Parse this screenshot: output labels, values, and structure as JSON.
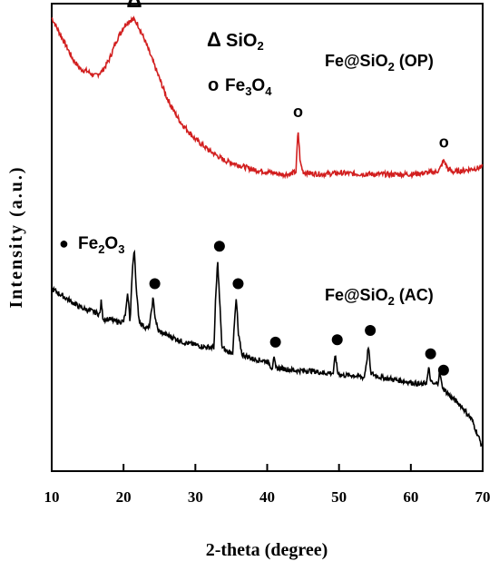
{
  "chart_data": {
    "type": "line",
    "xlabel": "2-theta (degree)",
    "ylabel": "Intensity (a.u.)",
    "xlim": [
      10,
      70
    ],
    "xticks": [
      10,
      20,
      30,
      40,
      50,
      60,
      70
    ],
    "ylim": [
      0,
      100
    ],
    "y_tick_labels": false,
    "grid": false,
    "series": [
      {
        "name": "Fe@SiO2 (OP)",
        "color": "#d21f1f",
        "x": [
          10,
          11,
          12,
          13,
          14,
          15,
          16,
          17,
          18,
          19,
          20,
          20.5,
          21,
          21.5,
          22,
          23,
          24,
          25,
          26,
          27,
          28,
          30,
          32,
          34,
          36,
          38,
          40,
          42,
          43,
          44,
          44.3,
          44.6,
          45,
          46,
          48,
          50,
          52,
          55,
          58,
          60,
          62,
          63.5,
          64,
          64.6,
          65.2,
          66,
          68,
          70
        ],
        "y": [
          97,
          94,
          91,
          88,
          86,
          85.5,
          84.5,
          85.5,
          88,
          92,
          95,
          96,
          96.5,
          96.5,
          95.5,
          92,
          88,
          84,
          80,
          77,
          74.5,
          71,
          68.5,
          66.5,
          65.5,
          64.5,
          64,
          63.5,
          63.5,
          64,
          73,
          66,
          64,
          63.7,
          63.5,
          63.8,
          63.6,
          63.5,
          63.5,
          63.5,
          63.8,
          64,
          64.5,
          66.5,
          64.5,
          64,
          64.5,
          65
        ]
      },
      {
        "name": "Fe@SiO2 (AC)",
        "color": "#000000",
        "x": [
          10,
          11,
          12,
          13,
          14,
          15,
          16,
          16.7,
          16.9,
          17.1,
          17.3,
          18,
          19,
          20,
          20.3,
          20.6,
          20.9,
          21.2,
          21.5,
          21.8,
          22.2,
          22.8,
          23.5,
          23.8,
          24.1,
          24.4,
          24.8,
          25.5,
          27,
          28.5,
          30,
          31.5,
          32.6,
          32.8,
          33.1,
          33.4,
          33.7,
          34.5,
          35.2,
          35.5,
          35.7,
          36,
          36.5,
          38,
          40,
          40.7,
          40.9,
          41.2,
          42,
          44,
          46,
          48,
          49.2,
          49.5,
          49.8,
          50.5,
          52,
          53.5,
          53.9,
          54.1,
          54.4,
          55,
          56,
          58,
          60,
          61.5,
          62.2,
          62.5,
          62.8,
          63.3,
          63.8,
          64,
          64.3,
          64.6,
          65.5,
          67,
          68.5,
          70
        ],
        "y": [
          39,
          38,
          37,
          36,
          35,
          34.5,
          34,
          33.5,
          36.5,
          33,
          32.5,
          32.5,
          32,
          32,
          34,
          38,
          32,
          42,
          48,
          38,
          32,
          31,
          30.5,
          33,
          37,
          33,
          30,
          29.5,
          28.5,
          27.5,
          27,
          26.5,
          26.5,
          36,
          45,
          36,
          26.5,
          25.5,
          25.5,
          33,
          37,
          29,
          25,
          24,
          23.5,
          22,
          24.5,
          22,
          22,
          21.5,
          21.5,
          21,
          21,
          25,
          21,
          20.5,
          20.5,
          20,
          24,
          27,
          21,
          20.5,
          20,
          19.5,
          19,
          18.5,
          19,
          22,
          19,
          18.5,
          19,
          21.5,
          18.5,
          17.5,
          16,
          14,
          11,
          5
        ]
      }
    ],
    "legend_annotations": [
      {
        "symbol": "Δ",
        "text": "SiO2"
      },
      {
        "symbol": "o",
        "text": "Fe3O4"
      },
      {
        "symbol": "●",
        "text": "Fe2O3"
      }
    ],
    "sample_labels": [
      "Fe@SiO2 (OP)",
      "Fe@SiO2 (AC)"
    ],
    "peak_markers": [
      {
        "symbol": "Δ",
        "x": 21.5,
        "series": 0
      },
      {
        "symbol": "o",
        "x": 44.3,
        "series": 0
      },
      {
        "symbol": "o",
        "x": 64.6,
        "series": 0
      },
      {
        "symbol": "●",
        "x": 24.1,
        "series": 1
      },
      {
        "symbol": "●",
        "x": 33.1,
        "series": 1
      },
      {
        "symbol": "●",
        "x": 35.7,
        "series": 1
      },
      {
        "symbol": "●",
        "x": 40.9,
        "series": 1
      },
      {
        "symbol": "●",
        "x": 49.5,
        "series": 1
      },
      {
        "symbol": "●",
        "x": 54.1,
        "series": 1
      },
      {
        "symbol": "●",
        "x": 62.5,
        "series": 1
      },
      {
        "symbol": "●",
        "x": 64.3,
        "series": 1
      }
    ]
  }
}
